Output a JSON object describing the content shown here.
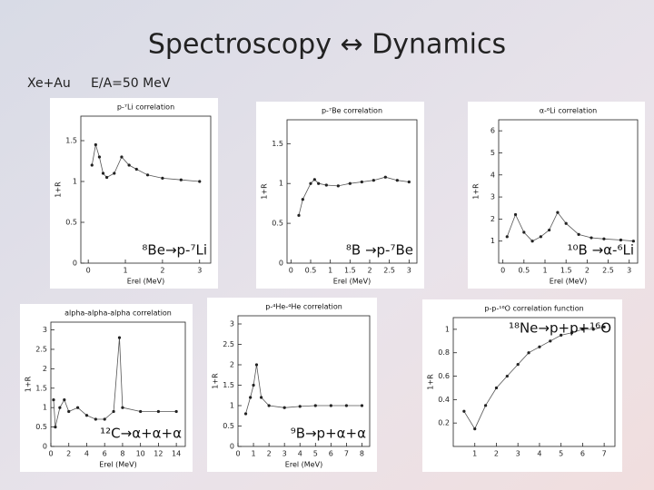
{
  "header": {
    "title": "Spectroscopy ↔ Dynamics",
    "system": "Xe+Au",
    "energy": "E/A=50 MeV"
  },
  "panels": [
    {
      "title": "p-⁷Li correlation",
      "xlabel": "Erel (MeV)",
      "ylabel": "1+R",
      "label": "⁸Be→p-⁷Li",
      "xlim": [
        -0.2,
        3.3
      ],
      "ylim": [
        0,
        1.8
      ],
      "xticks": [
        0,
        1,
        2,
        3
      ],
      "yticks": [
        0,
        0.5,
        1,
        1.5
      ],
      "x": [
        0.1,
        0.2,
        0.3,
        0.4,
        0.5,
        0.7,
        0.9,
        1.1,
        1.3,
        1.6,
        2,
        2.5,
        3
      ],
      "y": [
        1.2,
        1.45,
        1.3,
        1.1,
        1.05,
        1.1,
        1.3,
        1.2,
        1.15,
        1.08,
        1.04,
        1.02,
        1.0
      ]
    },
    {
      "title": "p-⁷Be correlation",
      "xlabel": "Erel (MeV)",
      "ylabel": "1+R",
      "label": "⁸B →p-⁷Be",
      "xlim": [
        -0.1,
        3.2
      ],
      "ylim": [
        0,
        1.8
      ],
      "xticks": [
        0,
        0.5,
        1,
        1.5,
        2,
        2.5,
        3
      ],
      "yticks": [
        0,
        0.5,
        1,
        1.5
      ],
      "x": [
        0.2,
        0.3,
        0.5,
        0.6,
        0.7,
        0.9,
        1.2,
        1.5,
        1.8,
        2.1,
        2.4,
        2.7,
        3
      ],
      "y": [
        0.6,
        0.8,
        1.0,
        1.05,
        1.0,
        0.98,
        0.97,
        1.0,
        1.02,
        1.04,
        1.08,
        1.04,
        1.02
      ]
    },
    {
      "title": "α-⁶Li correlation",
      "xlabel": "Erel (MeV)",
      "ylabel": "1+R",
      "label": "¹⁰B →α-⁶Li",
      "xlim": [
        -0.1,
        3.2
      ],
      "ylim": [
        0,
        6.5
      ],
      "xticks": [
        0,
        0.5,
        1,
        1.5,
        2,
        2.5,
        3
      ],
      "yticks": [
        1,
        2,
        3,
        4,
        5,
        6
      ],
      "x": [
        0.1,
        0.3,
        0.5,
        0.7,
        0.9,
        1.1,
        1.3,
        1.5,
        1.8,
        2.1,
        2.4,
        2.8,
        3.1
      ],
      "y": [
        1.2,
        2.2,
        1.4,
        1.0,
        1.2,
        1.5,
        2.3,
        1.8,
        1.3,
        1.15,
        1.1,
        1.05,
        1.0
      ]
    },
    {
      "title": "alpha-alpha-alpha correlation",
      "xlabel": "Erel (MeV)",
      "ylabel": "1+R",
      "label": "¹²C→α+α+α",
      "xlim": [
        0,
        15
      ],
      "ylim": [
        0,
        3.2
      ],
      "xticks": [
        0,
        2,
        4,
        6,
        8,
        10,
        12,
        14
      ],
      "yticks": [
        0,
        0.5,
        1,
        1.5,
        2,
        2.5,
        3
      ],
      "x": [
        0.3,
        0.5,
        1,
        1.5,
        2,
        3,
        4,
        5,
        6,
        7,
        7.65,
        8,
        10,
        12,
        14
      ],
      "y": [
        1.2,
        0.5,
        1.0,
        1.2,
        0.9,
        1.0,
        0.8,
        0.7,
        0.7,
        0.9,
        2.8,
        1.0,
        0.9,
        0.9,
        0.9
      ]
    },
    {
      "title": "p-⁴He-⁴He correlation",
      "xlabel": "Erel (MeV)",
      "ylabel": "1+R",
      "label": "⁹B→p+α+α",
      "xlim": [
        0,
        8.5
      ],
      "ylim": [
        0,
        3.2
      ],
      "xticks": [
        0,
        1,
        2,
        3,
        4,
        5,
        6,
        7,
        8
      ],
      "yticks": [
        0,
        0.5,
        1,
        1.5,
        2,
        2.5,
        3
      ],
      "x": [
        0.5,
        0.8,
        1,
        1.2,
        1.5,
        2,
        3,
        4,
        5,
        6,
        7,
        8
      ],
      "y": [
        0.8,
        1.2,
        1.5,
        2.0,
        1.2,
        1.0,
        0.95,
        0.98,
        1.0,
        1.0,
        1.0,
        1.0
      ]
    },
    {
      "title": "p-p-¹⁶O correlation function",
      "ylabel": "1+R",
      "label": "¹⁸Ne→p+p+¹⁶O",
      "xlim": [
        0,
        7.5
      ],
      "ylim": [
        0,
        1.1
      ],
      "xticks": [
        1,
        2,
        3,
        4,
        5,
        6,
        7
      ],
      "yticks": [
        0.2,
        0.4,
        0.6,
        0.8,
        1
      ],
      "x": [
        0.5,
        1,
        1.5,
        2,
        2.5,
        3,
        3.5,
        4,
        4.5,
        5,
        5.5,
        6,
        6.5,
        7
      ],
      "y": [
        0.3,
        0.15,
        0.35,
        0.5,
        0.6,
        0.7,
        0.8,
        0.85,
        0.9,
        0.95,
        0.97,
        1.0,
        1.0,
        1.02
      ]
    }
  ]
}
